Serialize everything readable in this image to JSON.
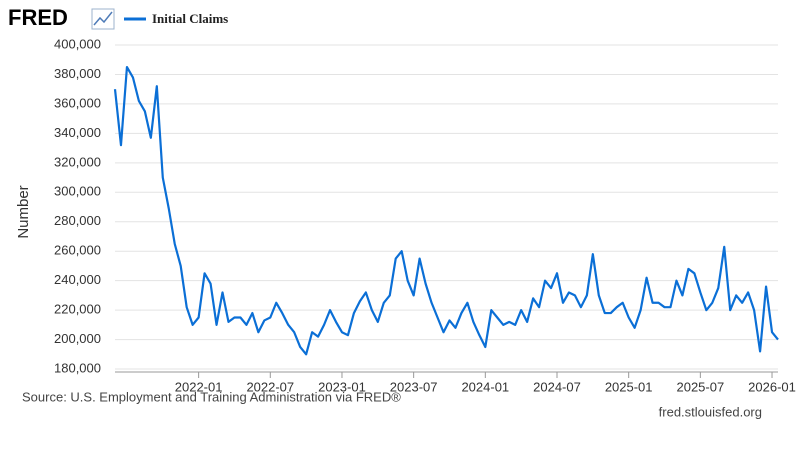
{
  "logo": "FRED",
  "source": "Source: U.S. Employment and Training Administration via FRED®",
  "site": "fred.stlouisfed.org",
  "chart_data": {
    "type": "line",
    "y_label": "Number",
    "x": [
      "2021-06",
      "2021-06",
      "2021-07",
      "2021-07",
      "2021-08",
      "2021-08",
      "2021-09",
      "2021-09",
      "2021-10",
      "2021-10",
      "2021-11",
      "2021-11",
      "2021-12",
      "2021-12",
      "2022-01",
      "2022-01",
      "2022-02",
      "2022-02",
      "2022-03",
      "2022-03",
      "2022-04",
      "2022-04",
      "2022-05",
      "2022-05",
      "2022-06",
      "2022-06",
      "2022-07",
      "2022-07",
      "2022-08",
      "2022-08",
      "2022-09",
      "2022-09",
      "2022-10",
      "2022-10",
      "2022-11",
      "2022-11",
      "2022-12",
      "2022-12",
      "2023-01",
      "2023-01",
      "2023-02",
      "2023-02",
      "2023-03",
      "2023-03",
      "2023-04",
      "2023-04",
      "2023-05",
      "2023-05",
      "2023-06",
      "2023-06",
      "2023-07",
      "2023-07",
      "2023-08",
      "2023-08",
      "2023-09",
      "2023-09",
      "2023-10",
      "2023-10",
      "2023-11",
      "2023-11",
      "2023-12",
      "2023-12",
      "2024-01",
      "2024-01",
      "2024-02",
      "2024-02",
      "2024-03",
      "2024-03",
      "2024-04",
      "2024-04",
      "2024-05",
      "2024-05",
      "2024-06",
      "2024-06",
      "2024-07",
      "2024-07",
      "2024-08",
      "2024-08",
      "2024-09",
      "2024-09",
      "2024-10",
      "2024-10",
      "2024-11",
      "2024-11",
      "2024-12",
      "2024-12",
      "2025-01",
      "2025-01",
      "2025-02",
      "2025-02",
      "2025-03",
      "2025-03",
      "2025-04",
      "2025-04",
      "2025-05",
      "2025-05",
      "2025-06",
      "2025-06",
      "2025-07",
      "2025-07",
      "2025-08",
      "2025-08",
      "2025-09",
      "2025-09",
      "2025-10",
      "2025-10",
      "2025-11",
      "2025-11",
      "2025-12",
      "2025-12",
      "2026-01",
      "2026-01"
    ],
    "series": [
      {
        "name": "Initial Claims",
        "color": "#0b6fd6",
        "values": [
          370000,
          332000,
          385000,
          378000,
          362000,
          355000,
          337000,
          372000,
          310000,
          289000,
          265000,
          250000,
          222000,
          210000,
          215000,
          245000,
          238000,
          210000,
          232000,
          212000,
          215000,
          215000,
          210000,
          218000,
          205000,
          213000,
          215000,
          225000,
          218000,
          210000,
          205000,
          195000,
          190000,
          205000,
          202000,
          210000,
          220000,
          212000,
          205000,
          203000,
          218000,
          226000,
          232000,
          220000,
          212000,
          225000,
          230000,
          255000,
          260000,
          240000,
          230000,
          255000,
          238000,
          225000,
          215000,
          205000,
          213000,
          208000,
          218000,
          225000,
          212000,
          203000,
          195000,
          220000,
          215000,
          210000,
          212000,
          210000,
          220000,
          212000,
          228000,
          222000,
          240000,
          235000,
          245000,
          225000,
          232000,
          230000,
          222000,
          230000,
          258000,
          230000,
          218000,
          218000,
          222000,
          225000,
          215000,
          208000,
          220000,
          242000,
          225000,
          225000,
          222000,
          222000,
          240000,
          230000,
          248000,
          245000,
          232000,
          220000,
          225000,
          235000,
          263000,
          220000,
          230000,
          225000,
          232000,
          220000,
          192000,
          236000,
          205000,
          200000
        ]
      }
    ],
    "ylim": [
      178000,
      400000
    ],
    "yticks": [
      {
        "value": 180000,
        "label": "180,000"
      },
      {
        "value": 200000,
        "label": "200,000"
      },
      {
        "value": 220000,
        "label": "220,000"
      },
      {
        "value": 240000,
        "label": "240,000"
      },
      {
        "value": 260000,
        "label": "260,000"
      },
      {
        "value": 280000,
        "label": "280,000"
      },
      {
        "value": 300000,
        "label": "300,000"
      },
      {
        "value": 320000,
        "label": "320,000"
      },
      {
        "value": 340000,
        "label": "340,000"
      },
      {
        "value": 360000,
        "label": "360,000"
      },
      {
        "value": 380000,
        "label": "380,000"
      },
      {
        "value": 400000,
        "label": "400,000"
      }
    ],
    "xticks": [
      "2022-01",
      "2022-07",
      "2023-01",
      "2023-07",
      "2024-01",
      "2024-07",
      "2025-01",
      "2025-07",
      "2026-01"
    ],
    "grid": true
  }
}
